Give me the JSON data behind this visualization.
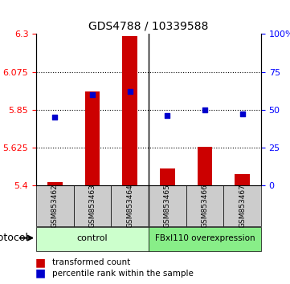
{
  "title": "GDS4788 / 10339588",
  "samples": [
    "GSM853462",
    "GSM853463",
    "GSM853464",
    "GSM853465",
    "GSM853466",
    "GSM853467"
  ],
  "bar_values": [
    5.42,
    5.96,
    6.29,
    5.5,
    5.63,
    5.47
  ],
  "bar_base": 5.4,
  "percentile_values": [
    45,
    60,
    62,
    46,
    50,
    47
  ],
  "ylim_left": [
    5.4,
    6.3
  ],
  "ylim_right": [
    0,
    100
  ],
  "yticks_left": [
    5.4,
    5.625,
    5.85,
    6.075,
    6.3
  ],
  "ytick_labels_left": [
    "5.4",
    "5.625",
    "5.85",
    "6.075",
    "6.3"
  ],
  "yticks_right": [
    0,
    25,
    50,
    75,
    100
  ],
  "ytick_labels_right": [
    "0",
    "25",
    "50",
    "75",
    "100%"
  ],
  "hlines": [
    5.625,
    5.85,
    6.075
  ],
  "bar_color": "#cc0000",
  "dot_color": "#0000cc",
  "control_samples": [
    0,
    1,
    2
  ],
  "overexp_samples": [
    3,
    4,
    5
  ],
  "group_labels": [
    "control",
    "FBxl110 overexpression"
  ],
  "group_bg_colors": [
    "#ccffcc",
    "#88ee88"
  ],
  "protocol_label": "protocol",
  "legend_bar_label": "transformed count",
  "legend_dot_label": "percentile rank within the sample",
  "sample_bg_color": "#cccccc",
  "bar_width": 0.4
}
